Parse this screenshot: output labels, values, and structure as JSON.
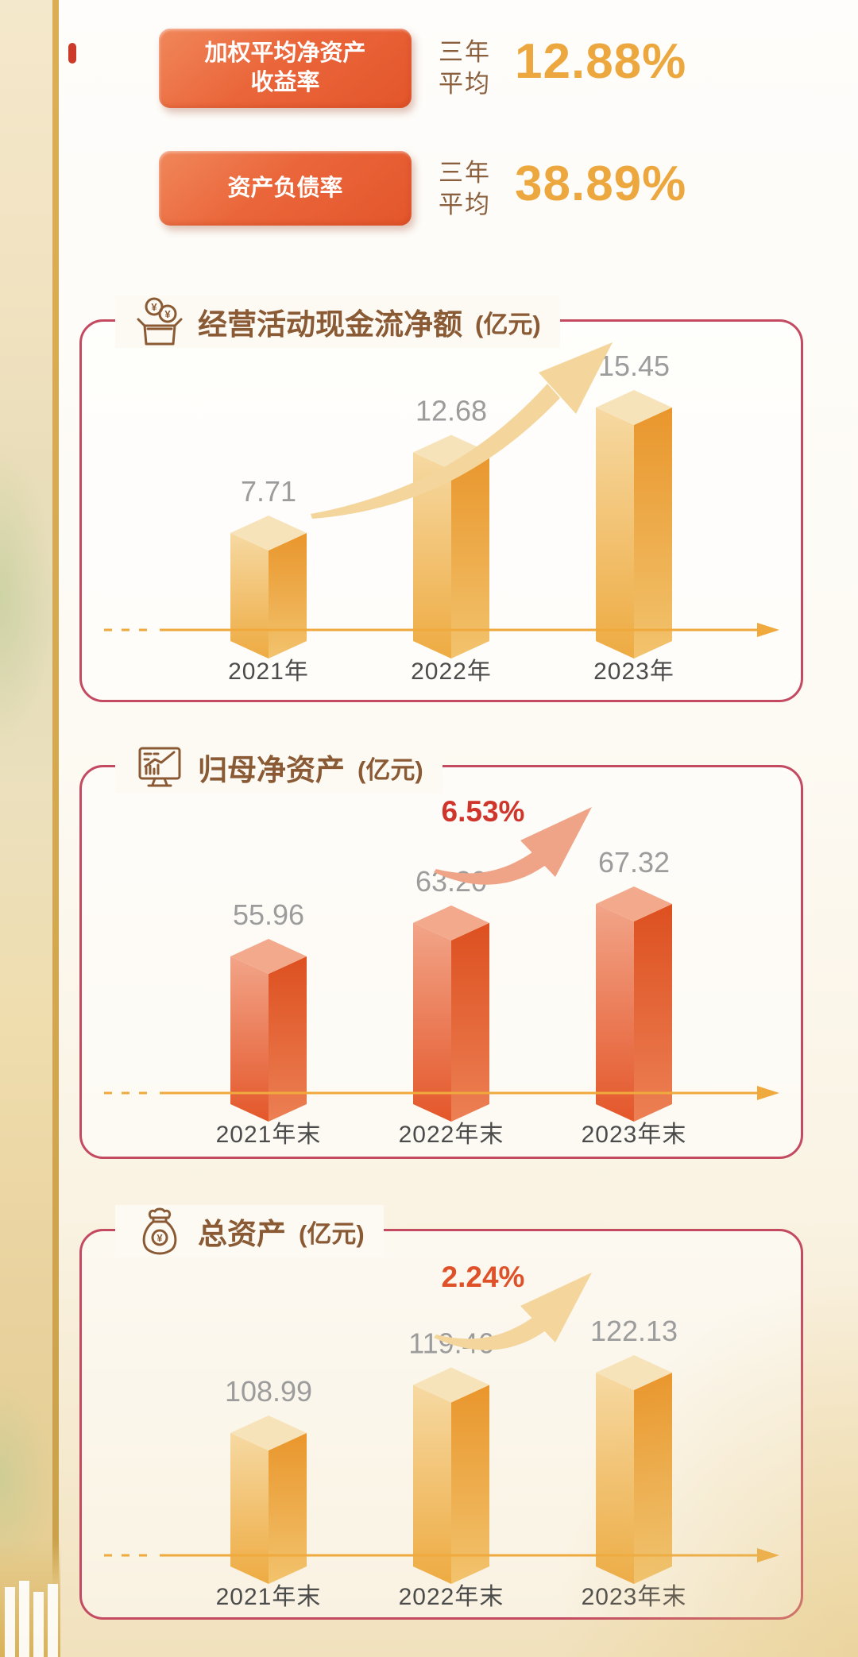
{
  "stats": [
    {
      "label_line1": "加权平均净资产",
      "label_line2": "收益率",
      "period_line1": "三年",
      "period_line2": "平均",
      "value": "12.88%"
    },
    {
      "label_line1": "资产负债率",
      "label_line2": "",
      "period_line1": "三年",
      "period_line2": "平均",
      "value": "38.89%"
    }
  ],
  "chart_data": [
    {
      "type": "bar",
      "title": "经营活动现金流净额",
      "unit": "(亿元)",
      "icon": "cash-box-icon",
      "categories": [
        "2021年",
        "2022年",
        "2023年"
      ],
      "values": [
        7.71,
        12.68,
        15.45
      ],
      "value_labels": [
        "7.71",
        "12.68",
        "15.45"
      ],
      "growth_label": null,
      "growth_color": null,
      "palette": "gold",
      "trend_arrow": true,
      "xlabel": "",
      "ylabel": "亿元",
      "legend": "none",
      "grid": false
    },
    {
      "type": "bar",
      "title": "归母净资产",
      "unit": "(亿元)",
      "icon": "monitor-chart-icon",
      "categories": [
        "2021年末",
        "2022年末",
        "2023年末"
      ],
      "values": [
        55.96,
        63.2,
        67.32
      ],
      "value_labels": [
        "55.96",
        "63.20",
        "67.32"
      ],
      "growth_label": "6.53%",
      "growth_color": "#cf352b",
      "palette": "red",
      "trend_arrow": true,
      "xlabel": "",
      "ylabel": "亿元",
      "legend": "none",
      "grid": false
    },
    {
      "type": "bar",
      "title": "总资产",
      "unit": "(亿元)",
      "icon": "money-bag-icon",
      "categories": [
        "2021年末",
        "2022年末",
        "2023年末"
      ],
      "values": [
        108.99,
        119.46,
        122.13
      ],
      "value_labels": [
        "108.99",
        "119.46",
        "122.13"
      ],
      "growth_label": "2.24%",
      "growth_color": "#df5229",
      "palette": "gold",
      "trend_arrow": true,
      "xlabel": "",
      "ylabel": "亿元",
      "legend": "none",
      "grid": false
    }
  ],
  "colors": {
    "badge_text": "#ffffff",
    "badge_gradient": [
      "#f0875a",
      "#e4562c"
    ],
    "period_text": "#8a5f3e",
    "stat_value": "#eca83e",
    "card_border": "#c44a62",
    "title_text": "#8a5a35",
    "value_label": "#9c9c9c",
    "category_label": "#4b4b4b",
    "axis": "#efa93c",
    "swoosh_gold": "#f4d69c",
    "swoosh_red": "#efa487",
    "gold_bar": {
      "top": "#f7e3ba",
      "frontTop": "#f6d9a2",
      "frontBottom": "#eeab42",
      "sideTop": "#e9962c",
      "sideBottom": "#f2c36d"
    },
    "red_bar": {
      "top": "#f3a98c",
      "frontTop": "#f2a488",
      "frontBottom": "#e4572a",
      "sideTop": "#dd5020",
      "sideBottom": "#ec8054"
    }
  }
}
